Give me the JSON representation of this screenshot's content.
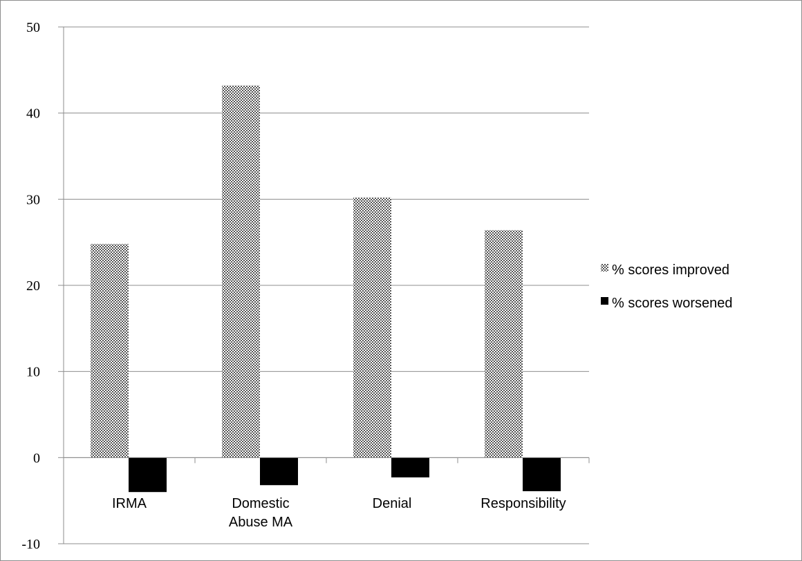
{
  "chart_data": {
    "type": "bar",
    "categories": [
      [
        "IRMA"
      ],
      [
        "Domestic",
        "Abuse MA"
      ],
      [
        "Denial"
      ],
      [
        "Responsibility"
      ]
    ],
    "series": [
      {
        "name": "% scores improved",
        "values": [
          24.8,
          43.2,
          30.2,
          26.4
        ],
        "fill": "pattern",
        "color": "#555555"
      },
      {
        "name": "% scores worsened",
        "values": [
          -4.0,
          -3.2,
          -2.3,
          -3.9
        ],
        "fill": "solid",
        "color": "#000000"
      }
    ],
    "ylim": [
      -10,
      50
    ],
    "yticks": [
      -10,
      0,
      10,
      20,
      30,
      40,
      50
    ],
    "grid": true,
    "legend_position": "right",
    "title": "",
    "xlabel": "",
    "ylabel": ""
  }
}
